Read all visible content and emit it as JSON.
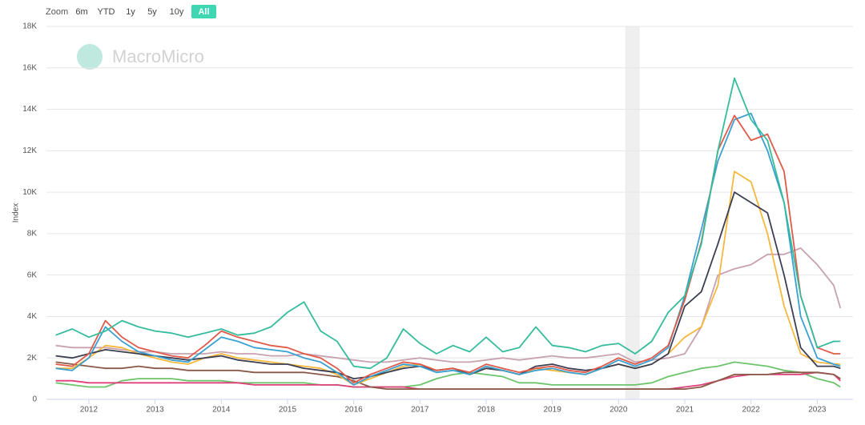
{
  "zoom": {
    "label": "Zoom",
    "buttons": [
      "6m",
      "YTD",
      "1y",
      "5y",
      "10y",
      "All"
    ],
    "selected": 5
  },
  "watermark": "MacroMicro",
  "chart_data": {
    "type": "line",
    "y_label": "Index",
    "x": [
      2011.5,
      2011.75,
      2012,
      2012.25,
      2012.5,
      2012.75,
      2013,
      2013.25,
      2013.5,
      2013.75,
      2014,
      2014.25,
      2014.5,
      2014.75,
      2015,
      2015.25,
      2015.5,
      2015.75,
      2016,
      2016.25,
      2016.5,
      2016.75,
      2017,
      2017.25,
      2017.5,
      2017.75,
      2018,
      2018.25,
      2018.5,
      2018.75,
      2019,
      2019.25,
      2019.5,
      2019.75,
      2020,
      2020.25,
      2020.5,
      2020.75,
      2021,
      2021.25,
      2021.5,
      2021.75,
      2022,
      2022.25,
      2022.5,
      2022.75,
      2023,
      2023.25,
      2023.35
    ],
    "xlim": [
      2011.36,
      2023.54
    ],
    "xticks": [
      2012,
      2013,
      2014,
      2015,
      2016,
      2017,
      2018,
      2019,
      2020,
      2021,
      2022,
      2023
    ],
    "ylim": [
      0,
      18000
    ],
    "yticks": [
      0,
      {
        "value": 2000,
        "label": "2K"
      },
      {
        "value": 4000,
        "label": "4K"
      },
      {
        "value": 6000,
        "label": "6K"
      },
      {
        "value": 8000,
        "label": "8K"
      },
      {
        "value": 10000,
        "label": "10K"
      },
      {
        "value": 12000,
        "label": "12K"
      },
      {
        "value": 14000,
        "label": "14K"
      },
      {
        "value": 16000,
        "label": "16K"
      },
      {
        "value": 18000,
        "label": "18K"
      }
    ],
    "grid": true,
    "shade": [
      2020.1,
      2020.32
    ],
    "series": [
      {
        "color": "#c8a2b0",
        "values": [
          2600,
          2500,
          2500,
          2500,
          2400,
          2300,
          2300,
          2200,
          2200,
          2200,
          2300,
          2200,
          2200,
          2100,
          2100,
          2200,
          2100,
          2000,
          1900,
          1800,
          1800,
          1900,
          2000,
          1900,
          1800,
          1800,
          1900,
          2000,
          1900,
          2000,
          2100,
          2000,
          2000,
          2100,
          2200,
          1800,
          1900,
          2000,
          2200,
          3500,
          6000,
          6300,
          6500,
          7000,
          7000,
          7300,
          6500,
          5500,
          4400
        ]
      },
      {
        "color": "#6cc46c",
        "values": [
          800,
          700,
          600,
          600,
          900,
          1000,
          1000,
          1000,
          900,
          900,
          900,
          800,
          800,
          800,
          800,
          800,
          700,
          700,
          600,
          600,
          600,
          600,
          700,
          1000,
          1200,
          1300,
          1200,
          1100,
          800,
          800,
          700,
          700,
          700,
          700,
          700,
          700,
          800,
          1100,
          1300,
          1500,
          1600,
          1800,
          1700,
          1600,
          1400,
          1300,
          1000,
          800,
          600
        ]
      },
      {
        "color": "#e0407a",
        "values": [
          900,
          900,
          800,
          800,
          800,
          800,
          800,
          800,
          800,
          800,
          800,
          800,
          700,
          700,
          700,
          700,
          700,
          700,
          600,
          600,
          600,
          600,
          500,
          500,
          500,
          500,
          500,
          500,
          500,
          500,
          500,
          500,
          500,
          500,
          500,
          500,
          500,
          500,
          600,
          700,
          900,
          1100,
          1200,
          1200,
          1200,
          1200,
          1300,
          1200,
          900
        ]
      },
      {
        "color": "#8a5a48",
        "values": [
          1800,
          1700,
          1600,
          1500,
          1500,
          1600,
          1500,
          1500,
          1400,
          1400,
          1400,
          1400,
          1300,
          1300,
          1300,
          1300,
          1200,
          1100,
          900,
          600,
          500,
          500,
          500,
          500,
          500,
          500,
          500,
          500,
          500,
          500,
          500,
          500,
          500,
          500,
          500,
          500,
          500,
          500,
          500,
          600,
          900,
          1200,
          1200,
          1200,
          1300,
          1300,
          1300,
          1200,
          1000
        ]
      },
      {
        "color": "#f5b83d",
        "values": [
          1500,
          1500,
          2000,
          2600,
          2500,
          2200,
          2000,
          1800,
          1700,
          2000,
          2200,
          2000,
          1900,
          1800,
          1700,
          1600,
          1500,
          1200,
          700,
          1000,
          1300,
          1600,
          1700,
          1400,
          1500,
          1200,
          1500,
          1400,
          1200,
          1500,
          1400,
          1300,
          1200,
          1500,
          1700,
          1500,
          1700,
          2200,
          3000,
          3500,
          5500,
          11000,
          10500,
          8000,
          4500,
          2200,
          1800,
          1700,
          1700
        ]
      },
      {
        "color": "#3c3f52",
        "values": [
          2100,
          2000,
          2200,
          2400,
          2300,
          2200,
          2100,
          2000,
          1900,
          2000,
          2100,
          1900,
          1800,
          1700,
          1700,
          1500,
          1400,
          1300,
          1000,
          1100,
          1300,
          1500,
          1600,
          1400,
          1500,
          1200,
          1500,
          1400,
          1200,
          1600,
          1700,
          1500,
          1400,
          1500,
          1700,
          1500,
          1700,
          2200,
          4500,
          5200,
          7500,
          10000,
          9500,
          9000,
          6000,
          2500,
          1600,
          1600,
          1500
        ]
      },
      {
        "color": "#3aa0d0",
        "values": [
          1500,
          1400,
          2000,
          3500,
          2800,
          2300,
          2100,
          1900,
          1800,
          2400,
          3000,
          2800,
          2500,
          2400,
          2300,
          2000,
          1800,
          1300,
          700,
          1100,
          1400,
          1700,
          1600,
          1300,
          1400,
          1200,
          1600,
          1400,
          1200,
          1400,
          1500,
          1300,
          1200,
          1500,
          1900,
          1600,
          1900,
          2500,
          5000,
          8200,
          11500,
          13500,
          13800,
          12000,
          9500,
          4000,
          2000,
          1700,
          1600
        ]
      },
      {
        "color": "#e05a4a",
        "values": [
          1700,
          1600,
          2200,
          3800,
          3000,
          2500,
          2300,
          2100,
          2000,
          2600,
          3300,
          3000,
          2800,
          2600,
          2500,
          2200,
          2000,
          1500,
          800,
          1200,
          1500,
          1800,
          1700,
          1400,
          1500,
          1300,
          1700,
          1500,
          1300,
          1500,
          1600,
          1400,
          1300,
          1600,
          2000,
          1700,
          2000,
          2600,
          4800,
          7600,
          12000,
          13700,
          12500,
          12800,
          11000,
          5000,
          2500,
          2200,
          2200
        ]
      },
      {
        "color": "#34bc9c",
        "values": [
          3100,
          3400,
          3000,
          3300,
          3800,
          3500,
          3300,
          3200,
          3000,
          3200,
          3400,
          3100,
          3200,
          3500,
          4200,
          4700,
          3300,
          2800,
          1600,
          1500,
          2000,
          3400,
          2700,
          2200,
          2600,
          2300,
          3000,
          2300,
          2500,
          3500,
          2600,
          2500,
          2300,
          2600,
          2700,
          2200,
          2800,
          4200,
          5000,
          7500,
          12000,
          15500,
          13500,
          12500,
          9500,
          5000,
          2500,
          2800,
          2800
        ]
      }
    ]
  }
}
